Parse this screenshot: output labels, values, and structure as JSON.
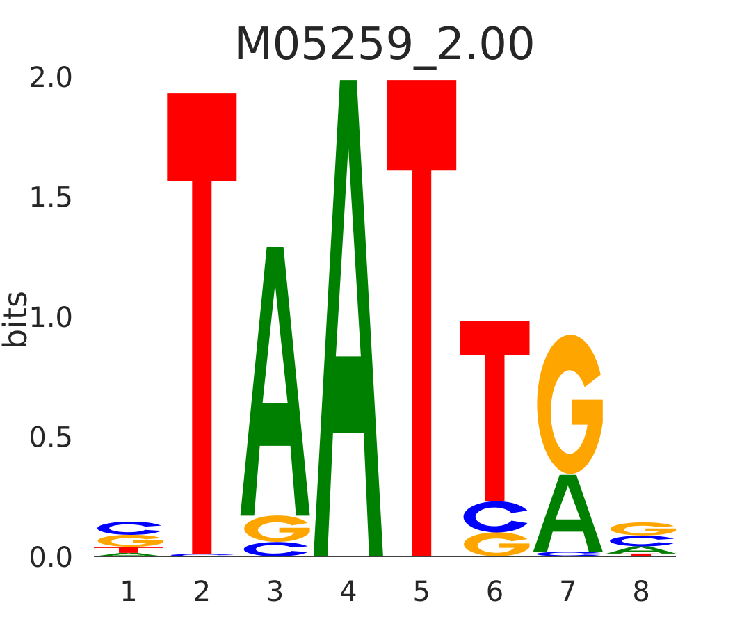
{
  "chart_data": {
    "type": "sequence-logo",
    "title": "M05259_2.00",
    "xlabel": "",
    "ylabel": "bits",
    "ylim": [
      0,
      2.0
    ],
    "yticks": [
      "0.0",
      "0.5",
      "1.0",
      "1.5",
      "2.0"
    ],
    "ytick_values": [
      0,
      0.5,
      1.0,
      1.5,
      2.0
    ],
    "positions": [
      "1",
      "2",
      "3",
      "4",
      "5",
      "6",
      "7",
      "8"
    ],
    "colors": {
      "A": "#008000",
      "C": "#0000ff",
      "G": "#ffa500",
      "T": "#ff0000"
    },
    "stacks": [
      [
        {
          "letter": "A",
          "bits": 0.015
        },
        {
          "letter": "T",
          "bits": 0.025
        },
        {
          "letter": "G",
          "bits": 0.05
        },
        {
          "letter": "C",
          "bits": 0.055
        }
      ],
      [
        {
          "letter": "C",
          "bits": 0.01
        },
        {
          "letter": "T",
          "bits": 1.92
        }
      ],
      [
        {
          "letter": "C",
          "bits": 0.06
        },
        {
          "letter": "G",
          "bits": 0.11
        },
        {
          "letter": "A",
          "bits": 1.12
        }
      ],
      [
        {
          "letter": "A",
          "bits": 1.985
        }
      ],
      [
        {
          "letter": "T",
          "bits": 1.985
        }
      ],
      [
        {
          "letter": "G",
          "bits": 0.1
        },
        {
          "letter": "C",
          "bits": 0.13
        },
        {
          "letter": "T",
          "bits": 0.75
        }
      ],
      [
        {
          "letter": "C",
          "bits": 0.02
        },
        {
          "letter": "A",
          "bits": 0.32
        },
        {
          "letter": "G",
          "bits": 0.58
        }
      ],
      [
        {
          "letter": "T",
          "bits": 0.012
        },
        {
          "letter": "A",
          "bits": 0.03
        },
        {
          "letter": "C",
          "bits": 0.045
        },
        {
          "letter": "G",
          "bits": 0.055
        }
      ]
    ]
  }
}
